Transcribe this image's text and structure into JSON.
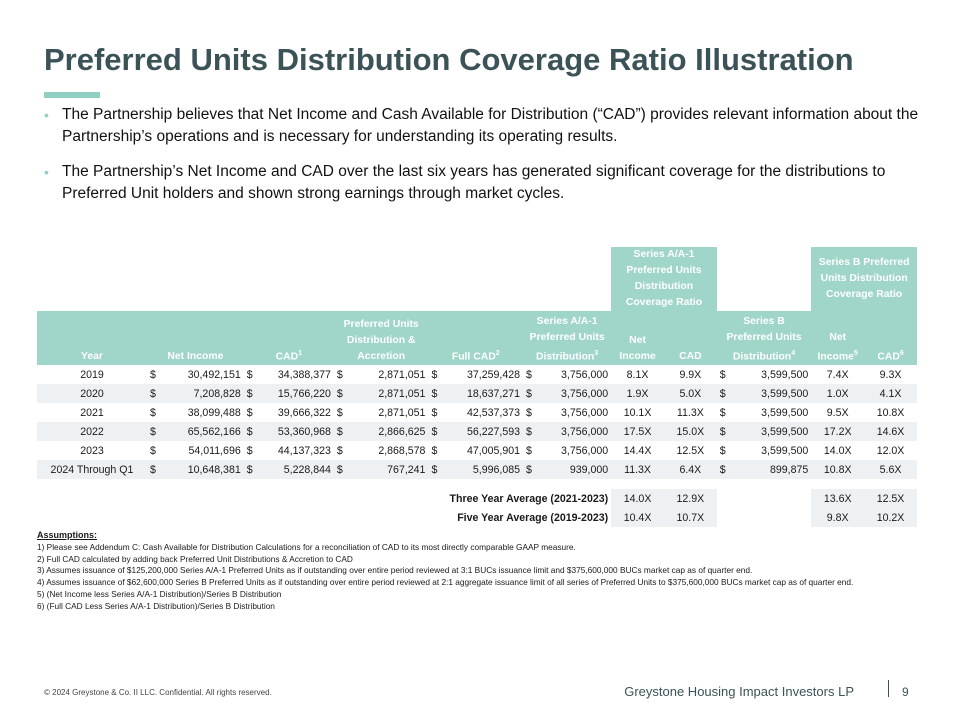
{
  "title": "Preferred Units Distribution Coverage Ratio Illustration",
  "bullets": [
    "The Partnership believes that Net Income and Cash Available for Distribution (“CAD”) provides relevant information about the Partnership’s operations and is necessary for understanding its operating results.",
    "The Partnership’s Net Income and CAD over the last six years has generated significant coverage for the distributions to Preferred Unit holders and shown strong earnings through market cycles."
  ],
  "table": {
    "group_headers": {
      "series_a": "Series A/A-1 Preferred Units Distribution Coverage Ratio",
      "series_b": "Series B Preferred Units Distribution Coverage Ratio"
    },
    "columns": {
      "year": "Year",
      "net_income": "Net Income",
      "cad": "CAD",
      "cad_sup": "1",
      "pref_dist": "Preferred Units Distribution & Accretion",
      "full_cad": "Full CAD",
      "full_cad_sup": "2",
      "series_a_dist": "Series A/A-1 Preferred Units Distribution",
      "series_a_dist_sup": "3",
      "a_net_income": "Net Income",
      "a_cad": "CAD",
      "series_b_dist": "Series B Preferred Units Distribution",
      "series_b_dist_sup": "4",
      "b_net_income": "Net Income",
      "b_net_income_sup": "5",
      "b_cad": "CAD",
      "b_cad_sup": "6"
    },
    "currency": "$",
    "rows": [
      {
        "year": "2019",
        "net_income": "30,492,151",
        "cad": "34,388,377",
        "pref": "2,871,051",
        "full_cad": "37,259,428",
        "a_dist": "3,756,000",
        "a_ni": "8.1X",
        "a_cad": "9.9X",
        "b_dist": "3,599,500",
        "b_ni": "7.4X",
        "b_cad": "9.3X"
      },
      {
        "year": "2020",
        "net_income": "7,208,828",
        "cad": "15,766,220",
        "pref": "2,871,051",
        "full_cad": "18,637,271",
        "a_dist": "3,756,000",
        "a_ni": "1.9X",
        "a_cad": "5.0X",
        "b_dist": "3,599,500",
        "b_ni": "1.0X",
        "b_cad": "4.1X"
      },
      {
        "year": "2021",
        "net_income": "38,099,488",
        "cad": "39,666,322",
        "pref": "2,871,051",
        "full_cad": "42,537,373",
        "a_dist": "3,756,000",
        "a_ni": "10.1X",
        "a_cad": "11.3X",
        "b_dist": "3,599,500",
        "b_ni": "9.5X",
        "b_cad": "10.8X"
      },
      {
        "year": "2022",
        "net_income": "65,562,166",
        "cad": "53,360,968",
        "pref": "2,866,625",
        "full_cad": "56,227,593",
        "a_dist": "3,756,000",
        "a_ni": "17.5X",
        "a_cad": "15.0X",
        "b_dist": "3,599,500",
        "b_ni": "17.2X",
        "b_cad": "14.6X"
      },
      {
        "year": "2023",
        "net_income": "54,011,696",
        "cad": "44,137,323",
        "pref": "2,868,578",
        "full_cad": "47,005,901",
        "a_dist": "3,756,000",
        "a_ni": "14.4X",
        "a_cad": "12.5X",
        "b_dist": "3,599,500",
        "b_ni": "14.0X",
        "b_cad": "12.0X"
      },
      {
        "year": "2024 Through Q1",
        "net_income": "10,648,381",
        "cad": "5,228,844",
        "pref": "767,241",
        "full_cad": "5,996,085",
        "a_dist": "939,000",
        "a_ni": "11.3X",
        "a_cad": "6.4X",
        "b_dist": "899,875",
        "b_ni": "10.8X",
        "b_cad": "5.6X"
      }
    ],
    "averages": [
      {
        "label": "Three Year Average (2021-2023)",
        "a_ni": "14.0X",
        "a_cad": "12.9X",
        "b_ni": "13.6X",
        "b_cad": "12.5X"
      },
      {
        "label": "Five Year Average (2019-2023)",
        "a_ni": "10.4X",
        "a_cad": "10.7X",
        "b_ni": "9.8X",
        "b_cad": "10.2X"
      }
    ]
  },
  "assumptions": {
    "heading": "Assumptions:",
    "items": [
      "1) Please see Addendum C: Cash Available for Distribution Calculations for a reconciliation of CAD to its most directly comparable GAAP measure.",
      "2) Full CAD calculated by adding back Preferred Unit Distributions & Accretion to CAD",
      "3) Assumes issuance of $125,200,000 Series A/A-1 Preferred Units as if outstanding over entire period reviewed at 3:1 BUCs issuance limit and $375,600,000 BUCs market cap as of quarter end.",
      "4) Assumes issuance of $62,600,000 Series B Preferred Units as if outstanding over entire period reviewed at 2:1 aggregate issuance limit of all series of Preferred Units to $375,600,000 BUCs market cap as of quarter end.",
      "5) (Net Income less Series A/A-1 Distribution)/Series B Distribution",
      "6) (Full CAD Less Series A/A-1 Distribution)/Series B Distribution"
    ]
  },
  "footer": {
    "copyright": "© 2024 Greystone & Co. II LLC. Confidential. All rights reserved.",
    "company": "Greystone Housing Impact Investors LP",
    "page": "9"
  },
  "colors": {
    "accent": "#9fd6c9",
    "title": "#3b5257",
    "row_alt": "#eef1f3"
  }
}
